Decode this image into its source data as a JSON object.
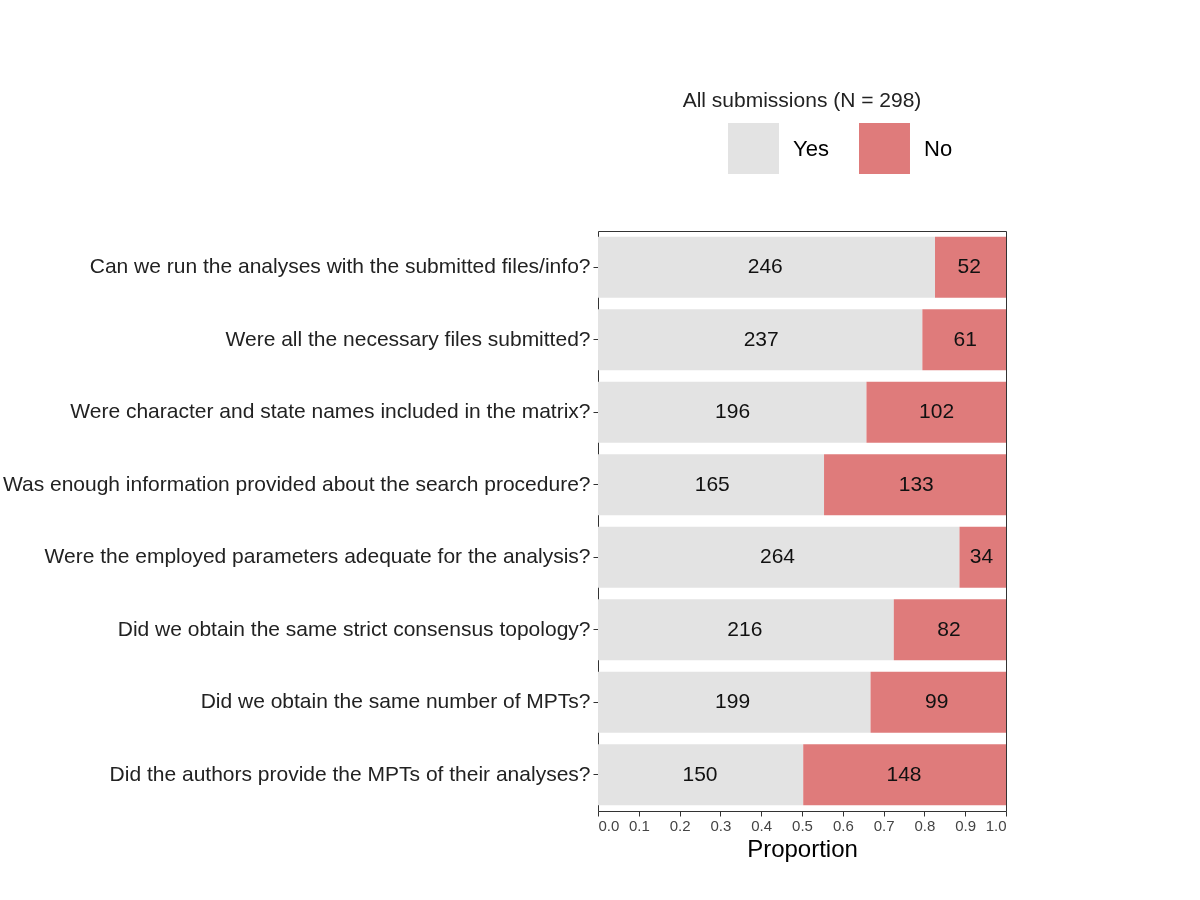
{
  "chart_data": {
    "type": "bar",
    "orientation": "horizontal",
    "stacked": true,
    "title": "All submissions (N = 298)",
    "xlabel": "Proportion",
    "categories": [
      "Can we run the analyses with the submitted files/info?",
      "Were all the necessary files submitted?",
      "Were character and state names included in the matrix?",
      "Was enough information provided about the search procedure?",
      "Were the employed parameters adequate for the analysis?",
      "Did we obtain the same strict consensus topology?",
      "Did we obtain the same number of MPTs?",
      "Did the authors provide the MPTs of their analyses?"
    ],
    "series": [
      {
        "name": "Yes",
        "color": "#e3e3e3",
        "values": [
          0.826,
          0.795,
          0.658,
          0.554,
          0.886,
          0.725,
          0.668,
          0.503
        ]
      },
      {
        "name": "No",
        "color": "#df7b7b",
        "values": [
          0.174,
          0.205,
          0.342,
          0.446,
          0.114,
          0.275,
          0.332,
          0.497
        ]
      }
    ],
    "annotations": [
      {
        "text": "246",
        "x": 0.41,
        "y": "Can we run the analyses with the submitted files/info?"
      },
      {
        "text": "52",
        "x": 0.91,
        "y": "Can we run the analyses with the submitted files/info?"
      },
      {
        "text": "237",
        "x": 0.4,
        "y": "Were all the necessary files submitted?"
      },
      {
        "text": "61",
        "x": 0.9,
        "y": "Were all the necessary files submitted?"
      },
      {
        "text": "196",
        "x": 0.33,
        "y": "Were character and state names included in the matrix?"
      },
      {
        "text": "102",
        "x": 0.83,
        "y": "Were character and state names included in the matrix?"
      },
      {
        "text": "165",
        "x": 0.28,
        "y": "Was enough information provided about the search procedure?"
      },
      {
        "text": "133",
        "x": 0.78,
        "y": "Was enough information provided about the search procedure?"
      },
      {
        "text": "264",
        "x": 0.44,
        "y": "Were the employed parameters adequate for the analysis?"
      },
      {
        "text": "34",
        "x": 0.94,
        "y": "Were the employed parameters adequate for the analysis?"
      },
      {
        "text": "216",
        "x": 0.36,
        "y": "Did we obtain the same strict consensus topology?"
      },
      {
        "text": "82",
        "x": 0.86,
        "y": "Did we obtain the same strict consensus topology?"
      },
      {
        "text": "199",
        "x": 0.33,
        "y": "Did we obtain the same number of MPTs?"
      },
      {
        "text": "99",
        "x": 0.83,
        "y": "Did we obtain the same number of MPTs?"
      },
      {
        "text": "150",
        "x": 0.25,
        "y": "Did the authors provide the MPTs of their analyses?"
      },
      {
        "text": "148",
        "x": 0.75,
        "y": "Did the authors provide the MPTs of their analyses?"
      }
    ],
    "xlim": [
      0,
      1
    ],
    "xticks": [
      {
        "value": 0,
        "label": "0.0"
      },
      0.1,
      0.2,
      0.3,
      0.4,
      0.5,
      0.6,
      0.7,
      0.8,
      0.9,
      {
        "value": 1,
        "label": "1.0"
      }
    ],
    "grid": false,
    "legend": "top right"
  }
}
